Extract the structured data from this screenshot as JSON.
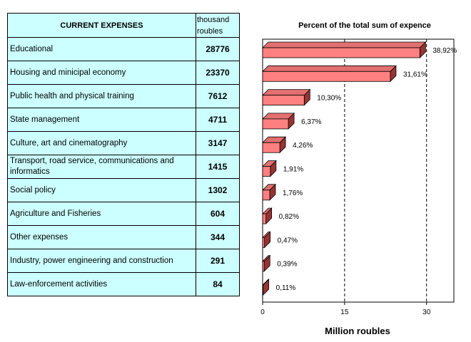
{
  "table": {
    "header_name": "CURRENT EXPENSES",
    "header_unit": "thousand roubles",
    "rows": [
      {
        "name": "Educational",
        "value": "28776"
      },
      {
        "name": "Housing and minicipal economy",
        "value": "23370"
      },
      {
        "name": "Public health and physical training",
        "value": "7612"
      },
      {
        "name": "State management",
        "value": "4711"
      },
      {
        "name": "Culture, art and cinematography",
        "value": "3147"
      },
      {
        "name": "Transport, road service, communications and informatics",
        "value": "1415"
      },
      {
        "name": "Social policy",
        "value": "1302"
      },
      {
        "name": "Agriculture and Fisheries",
        "value": "604"
      },
      {
        "name": "Other expenses",
        "value": "344"
      },
      {
        "name": "Industry, power engineering and construction",
        "value": "291"
      },
      {
        "name": "Law-enforcement activities",
        "value": "84"
      }
    ]
  },
  "chart_data": {
    "type": "bar",
    "orientation": "horizontal",
    "title": "Percent of the total sum of expence",
    "xlabel": "Million roubles",
    "ylabel": "",
    "xlim": [
      0,
      35
    ],
    "xticks": [
      "0",
      "15",
      "30"
    ],
    "xtick_values": [
      0,
      15,
      30
    ],
    "gridlines_x": [
      15,
      30
    ],
    "categories": [
      "Educational",
      "Housing and minicipal economy",
      "Public health and physical training",
      "State management",
      "Culture, art and cinematography",
      "Transport, road service, communications and informatics",
      "Social policy",
      "Agriculture and Fisheries",
      "Other expenses",
      "Industry, power engineering and construction",
      "Law-enforcement activities"
    ],
    "values": [
      28.776,
      23.37,
      7.612,
      4.711,
      3.147,
      1.415,
      1.302,
      0.604,
      0.344,
      0.291,
      0.084
    ],
    "data_labels": [
      "38,92%",
      "31,61%",
      "10,30%",
      "6,37%",
      "4,26%",
      "1,91%",
      "1,76%",
      "0,82%",
      "0,47%",
      "0,39%",
      "0,11%"
    ],
    "colors": {
      "front": "#ff8080",
      "top": "#e27070",
      "side": "#993333"
    }
  }
}
